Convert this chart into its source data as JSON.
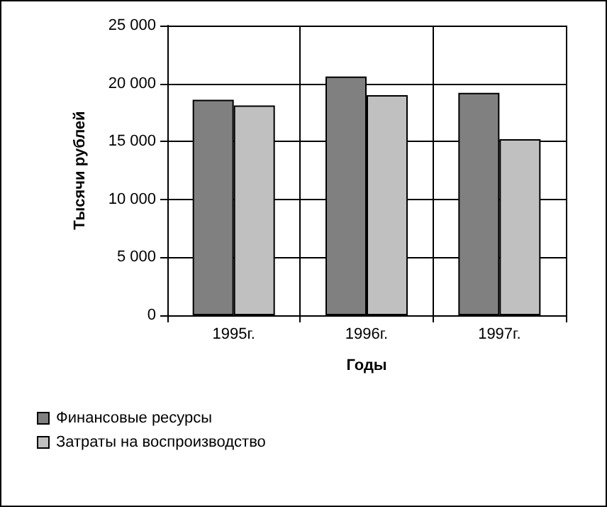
{
  "chart_data": {
    "type": "bar",
    "xlabel": "Годы",
    "ylabel": "Тысячи рублей",
    "categories": [
      "1995г.",
      "1996г.",
      "1997г."
    ],
    "series": [
      {
        "name": "Финансовые ресурсы",
        "color": "#808080",
        "values": [
          18600,
          20600,
          19200
        ]
      },
      {
        "name": "Затраты на воспроизводство",
        "color": "#c0c0c0",
        "values": [
          18100,
          19000,
          15200
        ]
      }
    ],
    "ylim": [
      0,
      25000
    ],
    "yticks": [
      0,
      {
        "value": 5000,
        "label": "5 000"
      },
      {
        "value": 10000,
        "label": "10 000"
      },
      {
        "value": 15000,
        "label": "15 000"
      },
      {
        "value": 20000,
        "label": "20 000"
      },
      {
        "value": 25000,
        "label": "25 000"
      }
    ],
    "grid": true,
    "legend": "bottom"
  }
}
